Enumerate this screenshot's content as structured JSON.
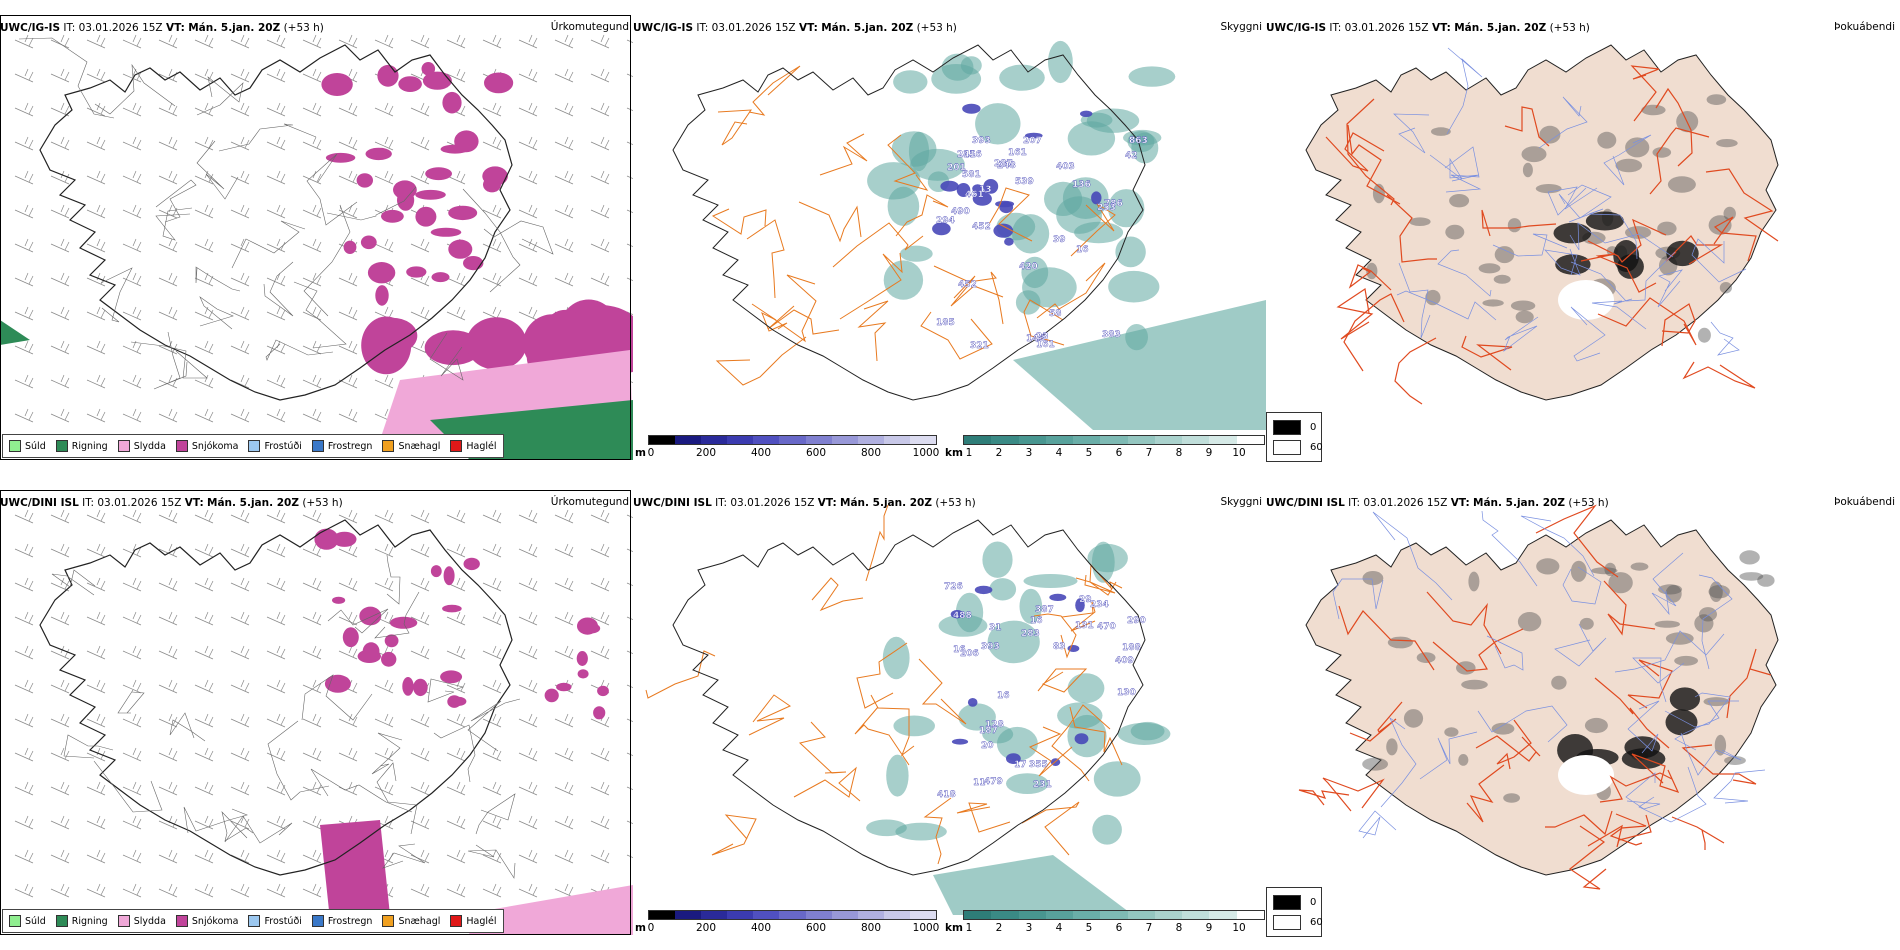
{
  "panels": [
    {
      "header": {
        "model": "UWC/IG-IS",
        "it_label": "IT:",
        "it": "03.01.2026 15Z",
        "vt_label": "VT:",
        "vt": "Mán. 5.jan. 20Z",
        "lead": "(+53 h)"
      },
      "title": "Úrkomutegund",
      "kind": "precip"
    },
    {
      "header": {
        "model": "UWC/IG-IS",
        "it_label": "IT:",
        "it": "03.01.2026 15Z",
        "vt_label": "VT:",
        "vt": "Mán. 5.jan. 20Z",
        "lead": "(+53 h)"
      },
      "title": "Skyggni",
      "kind": "cloud",
      "labels": [
        "161",
        "145",
        "185",
        "23",
        "16",
        "13",
        "403",
        "321",
        "420",
        "156",
        "452",
        "42",
        "207",
        "490",
        "581",
        "786",
        "393",
        "248",
        "136",
        "383",
        "253",
        "287",
        "161",
        "863",
        "294",
        "241",
        "452",
        "461",
        "539",
        "39",
        "201",
        "58"
      ]
    },
    {
      "header": {
        "model": "UWC/IG-IS",
        "it_label": "IT:",
        "it": "03.01.2026 15Z",
        "vt_label": "VT:",
        "vt": "Mán. 5.jan. 20Z",
        "lead": "(+53 h)"
      },
      "title": "Þokuábendi",
      "kind": "fog"
    },
    {
      "header": {
        "model": "UWC/DINI ISL",
        "it_label": "IT:",
        "it": "03.01.2026 15Z",
        "vt_label": "VT:",
        "vt": "Mán. 5.jan. 20Z",
        "lead": "(+53 h)"
      },
      "title": "Úrkomutegund",
      "kind": "precip"
    },
    {
      "header": {
        "model": "UWC/DINI ISL",
        "it_label": "IT:",
        "it": "03.01.2026 15Z",
        "vt_label": "VT:",
        "vt": "Mán. 5.jan. 20Z",
        "lead": "(+53 h)"
      },
      "title": "Skyggni",
      "kind": "cloud",
      "labels": [
        "83",
        "387",
        "29",
        "470",
        "488",
        "726",
        "355",
        "393",
        "131",
        "409",
        "479",
        "418",
        "283",
        "16",
        "16",
        "17",
        "128",
        "188",
        "206",
        "130",
        "187",
        "290",
        "234",
        "231",
        "20",
        "11",
        "16",
        "31"
      ]
    },
    {
      "header": {
        "model": "UWC/DINI ISL",
        "it_label": "IT:",
        "it": "03.01.2026 15Z",
        "vt_label": "VT:",
        "vt": "Mán. 5.jan. 20Z",
        "lead": "(+53 h)"
      },
      "title": "Þokuábendi",
      "kind": "fog"
    }
  ],
  "precip_legend": [
    {
      "label": "Súld",
      "color": "#90ee90"
    },
    {
      "label": "Rigning",
      "color": "#2e8b57"
    },
    {
      "label": "Slydda",
      "color": "#f0a8d8"
    },
    {
      "label": "Snjókoma",
      "color": "#c0449a"
    },
    {
      "label": "Frostúði",
      "color": "#9cc8f0"
    },
    {
      "label": "Frostregn",
      "color": "#3a78c8"
    },
    {
      "label": "Snæhagl",
      "color": "#f0a020"
    },
    {
      "label": "Haglél",
      "color": "#e01818"
    }
  ],
  "cloudbase_bar": {
    "unit": "m",
    "ticks": [
      "0",
      "200",
      "400",
      "600",
      "800",
      "1000"
    ],
    "colors": [
      "#000000",
      "#1a1a80",
      "#2a2a9a",
      "#3b3bb0",
      "#5050c0",
      "#6868c8",
      "#8080d0",
      "#9898d8",
      "#b0b0e0",
      "#c8c8e8",
      "#dcdcf0"
    ]
  },
  "vis_bar": {
    "unit": "km",
    "ticks": [
      "1",
      "2",
      "3",
      "4",
      "5",
      "6",
      "7",
      "8",
      "9",
      "10"
    ],
    "colors": [
      "#2e7d78",
      "#3a8a85",
      "#489690",
      "#58a29c",
      "#6aaea8",
      "#7ebab4",
      "#94c6c0",
      "#aad2cd",
      "#c0deda",
      "#d6eae7",
      "#ffffff"
    ]
  },
  "fog_box": {
    "values": [
      "0",
      "60"
    ],
    "colors": [
      "#000000",
      "#ffffff"
    ]
  },
  "colors": {
    "snow": "#c0449a",
    "sleet": "#f0a8d8",
    "rain": "#2e8b57",
    "cloudbase": "#4848b8",
    "visibility": "#5fa8a0",
    "roads": "#e87a20",
    "fog_land": "#f0ddd0",
    "fog_road": "#e04a20",
    "rivers": "#7a90e0"
  }
}
